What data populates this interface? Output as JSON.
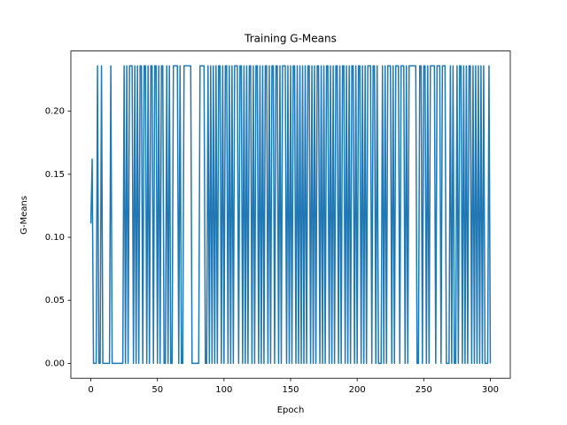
{
  "chart_data": {
    "type": "line",
    "title": "Training G-Means",
    "x_label": "Epoch",
    "y_label": "G-Means",
    "color": "#1f77b4",
    "x": [
      0,
      1,
      2,
      3,
      4,
      5,
      6,
      7,
      8,
      9,
      10,
      11,
      12,
      13,
      14,
      15,
      16,
      17,
      18,
      19,
      20,
      21,
      22,
      23,
      24,
      25,
      26,
      27,
      28,
      29,
      30,
      31,
      32,
      33,
      34,
      35,
      36,
      37,
      38,
      39,
      40,
      41,
      42,
      43,
      44,
      45,
      46,
      47,
      48,
      49,
      50,
      51,
      52,
      53,
      54,
      55,
      56,
      57,
      58,
      59,
      60,
      61,
      62,
      63,
      64,
      65,
      66,
      67,
      68,
      69,
      70,
      71,
      72,
      73,
      74,
      75,
      76,
      77,
      78,
      79,
      80,
      81,
      82,
      83,
      84,
      85,
      86,
      87,
      88,
      89,
      90,
      91,
      92,
      93,
      94,
      95,
      96,
      97,
      98,
      99,
      100,
      101,
      102,
      103,
      104,
      105,
      106,
      107,
      108,
      109,
      110,
      111,
      112,
      113,
      114,
      115,
      116,
      117,
      118,
      119,
      120,
      121,
      122,
      123,
      124,
      125,
      126,
      127,
      128,
      129,
      130,
      131,
      132,
      133,
      134,
      135,
      136,
      137,
      138,
      139,
      140,
      141,
      142,
      143,
      144,
      145,
      146,
      147,
      148,
      149,
      150,
      151,
      152,
      153,
      154,
      155,
      156,
      157,
      158,
      159,
      160,
      161,
      162,
      163,
      164,
      165,
      166,
      167,
      168,
      169,
      170,
      171,
      172,
      173,
      174,
      175,
      176,
      177,
      178,
      179,
      180,
      181,
      182,
      183,
      184,
      185,
      186,
      187,
      188,
      189,
      190,
      191,
      192,
      193,
      194,
      195,
      196,
      197,
      198,
      199,
      200,
      201,
      202,
      203,
      204,
      205,
      206,
      207,
      208,
      209,
      210,
      211,
      212,
      213,
      214,
      215,
      216,
      217,
      218,
      219,
      220,
      221,
      222,
      223,
      224,
      225,
      226,
      227,
      228,
      229,
      230,
      231,
      232,
      233,
      234,
      235,
      236,
      237,
      238,
      239,
      240,
      241,
      242,
      243,
      244,
      245,
      246,
      247,
      248,
      249,
      250,
      251,
      252,
      253,
      254,
      255,
      256,
      257,
      258,
      259,
      260,
      261,
      262,
      263,
      264,
      265,
      266,
      267,
      268,
      269,
      270,
      271,
      272,
      273,
      274,
      275,
      276,
      277,
      278,
      279,
      280,
      281,
      282,
      283,
      284,
      285,
      286,
      287,
      288,
      289,
      290,
      291,
      292,
      293,
      294,
      295,
      296,
      297,
      298,
      299,
      300
    ],
    "values": [
      0.111,
      0.162,
      0,
      0,
      0,
      0.236,
      0,
      0,
      0.236,
      0,
      0,
      0,
      0,
      0,
      0,
      0.236,
      0,
      0,
      0,
      0,
      0,
      0,
      0,
      0,
      0,
      0.236,
      0,
      0.236,
      0,
      0.236,
      0.236,
      0.236,
      0,
      0.236,
      0,
      0.236,
      0,
      0.236,
      0.236,
      0,
      0.236,
      0.236,
      0,
      0.236,
      0,
      0.236,
      0.236,
      0,
      0.236,
      0.236,
      0,
      0.236,
      0,
      0.236,
      0.236,
      0,
      0,
      0.236,
      0,
      0.236,
      0,
      0,
      0.236,
      0.236,
      0.236,
      0.236,
      0,
      0.236,
      0,
      0,
      0.236,
      0.236,
      0.236,
      0.236,
      0.236,
      0.236,
      0,
      0,
      0,
      0,
      0,
      0,
      0.236,
      0.236,
      0.236,
      0.236,
      0,
      0,
      0.236,
      0,
      0.236,
      0,
      0.236,
      0,
      0.236,
      0,
      0.236,
      0.236,
      0,
      0.236,
      0,
      0.236,
      0.236,
      0,
      0.236,
      0,
      0.236,
      0,
      0.236,
      0.236,
      0.236,
      0,
      0.236,
      0.236,
      0,
      0.236,
      0,
      0.236,
      0,
      0.236,
      0.236,
      0,
      0.236,
      0,
      0.236,
      0.236,
      0,
      0.236,
      0,
      0.236,
      0,
      0.236,
      0.236,
      0,
      0.236,
      0,
      0.236,
      0.236,
      0,
      0.236,
      0.236,
      0,
      0.236,
      0,
      0.236,
      0.236,
      0.236,
      0,
      0.236,
      0,
      0.236,
      0,
      0.236,
      0.236,
      0,
      0.236,
      0,
      0.236,
      0,
      0.236,
      0,
      0.236,
      0,
      0.236,
      0.236,
      0,
      0.236,
      0,
      0.236,
      0,
      0.236,
      0.236,
      0,
      0.236,
      0,
      0.236,
      0,
      0.236,
      0.236,
      0,
      0.236,
      0,
      0.236,
      0,
      0.236,
      0.236,
      0,
      0.236,
      0,
      0.236,
      0.236,
      0,
      0.236,
      0,
      0.236,
      0,
      0.236,
      0.236,
      0,
      0.236,
      0,
      0.236,
      0.236,
      0,
      0.236,
      0,
      0.236,
      0,
      0.236,
      0.236,
      0.236,
      0,
      0.236,
      0.236,
      0,
      0.236,
      0,
      0,
      0,
      0.236,
      0,
      0.236,
      0,
      0.236,
      0.236,
      0.236,
      0,
      0.236,
      0,
      0.236,
      0.236,
      0.236,
      0,
      0.236,
      0.236,
      0.236,
      0,
      0.236,
      0,
      0.236,
      0.236,
      0.236,
      0.236,
      0.236,
      0.236,
      0,
      0,
      0.236,
      0.236,
      0,
      0.236,
      0.236,
      0,
      0.236,
      0,
      0.236,
      0.236,
      0.236,
      0.236,
      0,
      0.236,
      0.236,
      0.236,
      0,
      0.236,
      0.236,
      0.236,
      0,
      0,
      0,
      0.236,
      0,
      0.236,
      0,
      0,
      0.236,
      0,
      0.236,
      0.236,
      0,
      0.236,
      0,
      0.236,
      0,
      0.236,
      0.236,
      0,
      0.236,
      0,
      0.236,
      0,
      0.236,
      0,
      0.236,
      0,
      0.236,
      0,
      0,
      0,
      0.236,
      0
    ],
    "xlim": [
      -15,
      315
    ],
    "xticks": [
      0,
      50,
      100,
      150,
      200,
      250,
      300
    ],
    "ylim": [
      -0.0118,
      0.2478
    ],
    "yticks": [
      {
        "value": 0,
        "label": "0.00"
      },
      {
        "value": 0.05,
        "label": "0.05"
      },
      {
        "value": 0.1,
        "label": "0.10"
      },
      {
        "value": 0.15,
        "label": "0.15"
      },
      {
        "value": 0.2,
        "label": "0.20"
      }
    ]
  }
}
